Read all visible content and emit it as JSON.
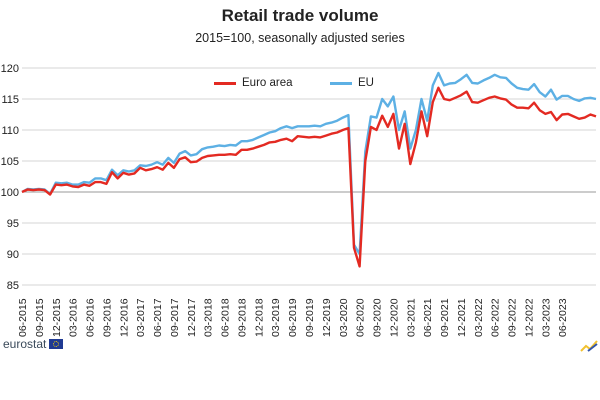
{
  "chart_data": {
    "type": "line",
    "title": "Retail trade volume",
    "subtitle": "2015=100, seasonally adjusted series",
    "xlabel": "",
    "ylabel": "",
    "ylim": [
      85,
      120
    ],
    "yticks": [
      85,
      90,
      95,
      100,
      105,
      110,
      115,
      120
    ],
    "ytick_labels": [
      "85",
      "90",
      "95",
      "100",
      "105",
      "110",
      "115",
      "120"
    ],
    "grid": "horizontal",
    "legend": "top-center",
    "x_labels": [
      "06-2015",
      "09-2015",
      "12-2015",
      "03-2016",
      "06-2016",
      "09-2016",
      "12-2016",
      "03-2017",
      "06-2017",
      "09-2017",
      "12-2017",
      "03-2018",
      "06-2018",
      "09-2018",
      "12-2018",
      "03-2019",
      "06-2019",
      "09-2019",
      "12-2019",
      "03-2020",
      "06-2020",
      "09-2020",
      "12-2020",
      "03-2021",
      "06-2021",
      "09-2021",
      "12-2021",
      "03-2022",
      "06-2022",
      "09-2022",
      "12-2022",
      "03-2023",
      "06-2023"
    ],
    "x_start": "06-2015",
    "frequency": "monthly",
    "series": [
      {
        "name": "Euro area",
        "color": "#e32a22",
        "values": [
          100.0,
          100.4,
          100.3,
          100.4,
          100.3,
          99.6,
          101.2,
          101.1,
          101.2,
          100.9,
          100.8,
          101.2,
          101.0,
          101.6,
          101.6,
          101.3,
          103.2,
          102.2,
          103.1,
          102.8,
          103.0,
          103.9,
          103.5,
          103.7,
          104.0,
          103.6,
          104.7,
          103.9,
          105.3,
          105.6,
          104.8,
          104.9,
          105.5,
          105.8,
          105.9,
          106.0,
          106.0,
          106.1,
          106.0,
          106.8,
          106.8,
          107.0,
          107.3,
          107.6,
          108.0,
          108.1,
          108.4,
          108.6,
          108.2,
          109.0,
          108.9,
          108.8,
          108.9,
          108.8,
          109.1,
          109.4,
          109.6,
          110.0,
          110.3,
          91.0,
          88.0,
          105.0,
          110.5,
          110.0,
          112.3,
          110.5,
          112.6,
          107.0,
          111.0,
          104.5,
          108.0,
          113.0,
          109.0,
          114.5,
          116.8,
          115.0,
          114.8,
          115.2,
          115.6,
          116.2,
          114.5,
          114.4,
          114.8,
          115.2,
          115.4,
          115.1,
          114.9,
          114.1,
          113.6,
          113.6,
          113.5,
          114.4,
          113.2,
          112.6,
          112.9,
          111.6,
          112.5,
          112.6,
          112.2,
          111.8,
          112.0,
          112.5,
          112.2
        ]
      },
      {
        "name": "EU",
        "color": "#5db0e4",
        "values": [
          100.0,
          100.5,
          100.4,
          100.5,
          100.4,
          99.7,
          101.5,
          101.4,
          101.5,
          101.2,
          101.2,
          101.6,
          101.5,
          102.2,
          102.2,
          101.9,
          103.6,
          102.7,
          103.5,
          103.3,
          103.5,
          104.3,
          104.2,
          104.4,
          104.8,
          104.4,
          105.5,
          104.7,
          106.2,
          106.6,
          105.9,
          106.1,
          106.9,
          107.2,
          107.3,
          107.5,
          107.4,
          107.6,
          107.5,
          108.2,
          108.2,
          108.4,
          108.8,
          109.2,
          109.6,
          109.8,
          110.3,
          110.6,
          110.3,
          110.6,
          110.6,
          110.6,
          110.7,
          110.6,
          111.0,
          111.2,
          111.5,
          112.0,
          112.4,
          91.5,
          90.0,
          106.5,
          112.2,
          112.0,
          115.0,
          113.8,
          115.4,
          110.0,
          113.0,
          107.0,
          110.0,
          115.0,
          111.5,
          117.2,
          119.2,
          117.2,
          117.5,
          117.6,
          118.2,
          118.9,
          117.6,
          117.5,
          118.0,
          118.4,
          118.9,
          118.5,
          118.4,
          117.5,
          116.8,
          116.6,
          116.5,
          117.4,
          116.1,
          115.4,
          116.5,
          114.9,
          115.5,
          115.5,
          115.0,
          114.7,
          115.1,
          115.2,
          115.0
        ]
      }
    ]
  },
  "source_logo": "eurostat"
}
